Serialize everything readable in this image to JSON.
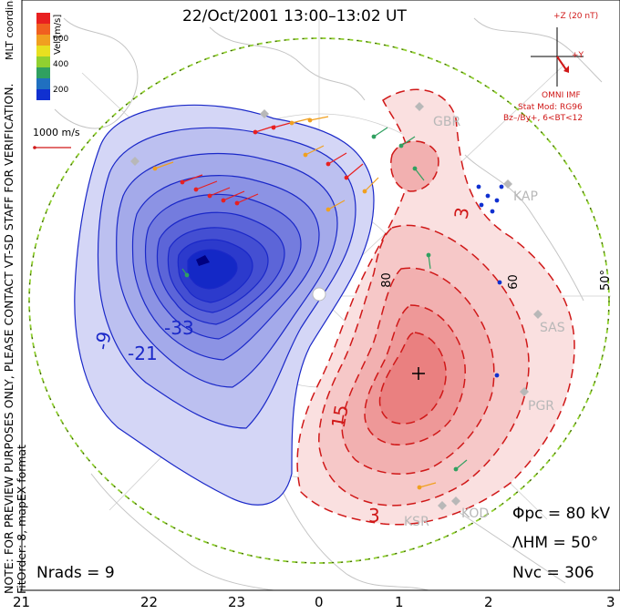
{
  "title": "22/Oct/2001 13:00–13:02 UT",
  "note_line1": "NOTE: FOR PREVIEW PURPOSES ONLY, PLEASE CONTACT VT-SD STAFF FOR VERIFICATION.",
  "note_line2": "FitOrder: 8,  mapEX format",
  "coord_label": "MLT coordinates",
  "colorbar": {
    "label": "Vel [m/s]",
    "ticks": [
      "600",
      "400",
      "200"
    ],
    "colors": [
      "#e82020",
      "#f06020",
      "#f0a020",
      "#e8e020",
      "#90d030",
      "#30a060",
      "#2070c0",
      "#1030d0"
    ]
  },
  "vector_scale_label": "1000 m/s",
  "imf": {
    "z_label": "+Z (20 nT)",
    "y_label": "+Y",
    "source": "OMNI IMF",
    "model": "Stat Mod: RG96",
    "condition": "Bz–/By+, 6<BT<12"
  },
  "contour_labels": [
    "-9",
    "-21",
    "-33",
    "15",
    "3",
    "3"
  ],
  "lat_labels": [
    "80",
    "60",
    "50°"
  ],
  "stations": [
    "GBR",
    "KAP",
    "SAS",
    "PGR",
    "KOD",
    "KSR"
  ],
  "stats": {
    "phi_pc": "Φpc = 80 kV",
    "lambda_hm": "ΛHM = 50°",
    "n_vc": "Nvc = 306",
    "n_rads": "Nrads = 9"
  },
  "mlt_ticks": [
    "21",
    "22",
    "23",
    "0",
    "1",
    "2",
    "3"
  ],
  "colors": {
    "negative_cell": "#1a28c8",
    "positive_cell": "#d01818",
    "boundary": "#90d030"
  }
}
